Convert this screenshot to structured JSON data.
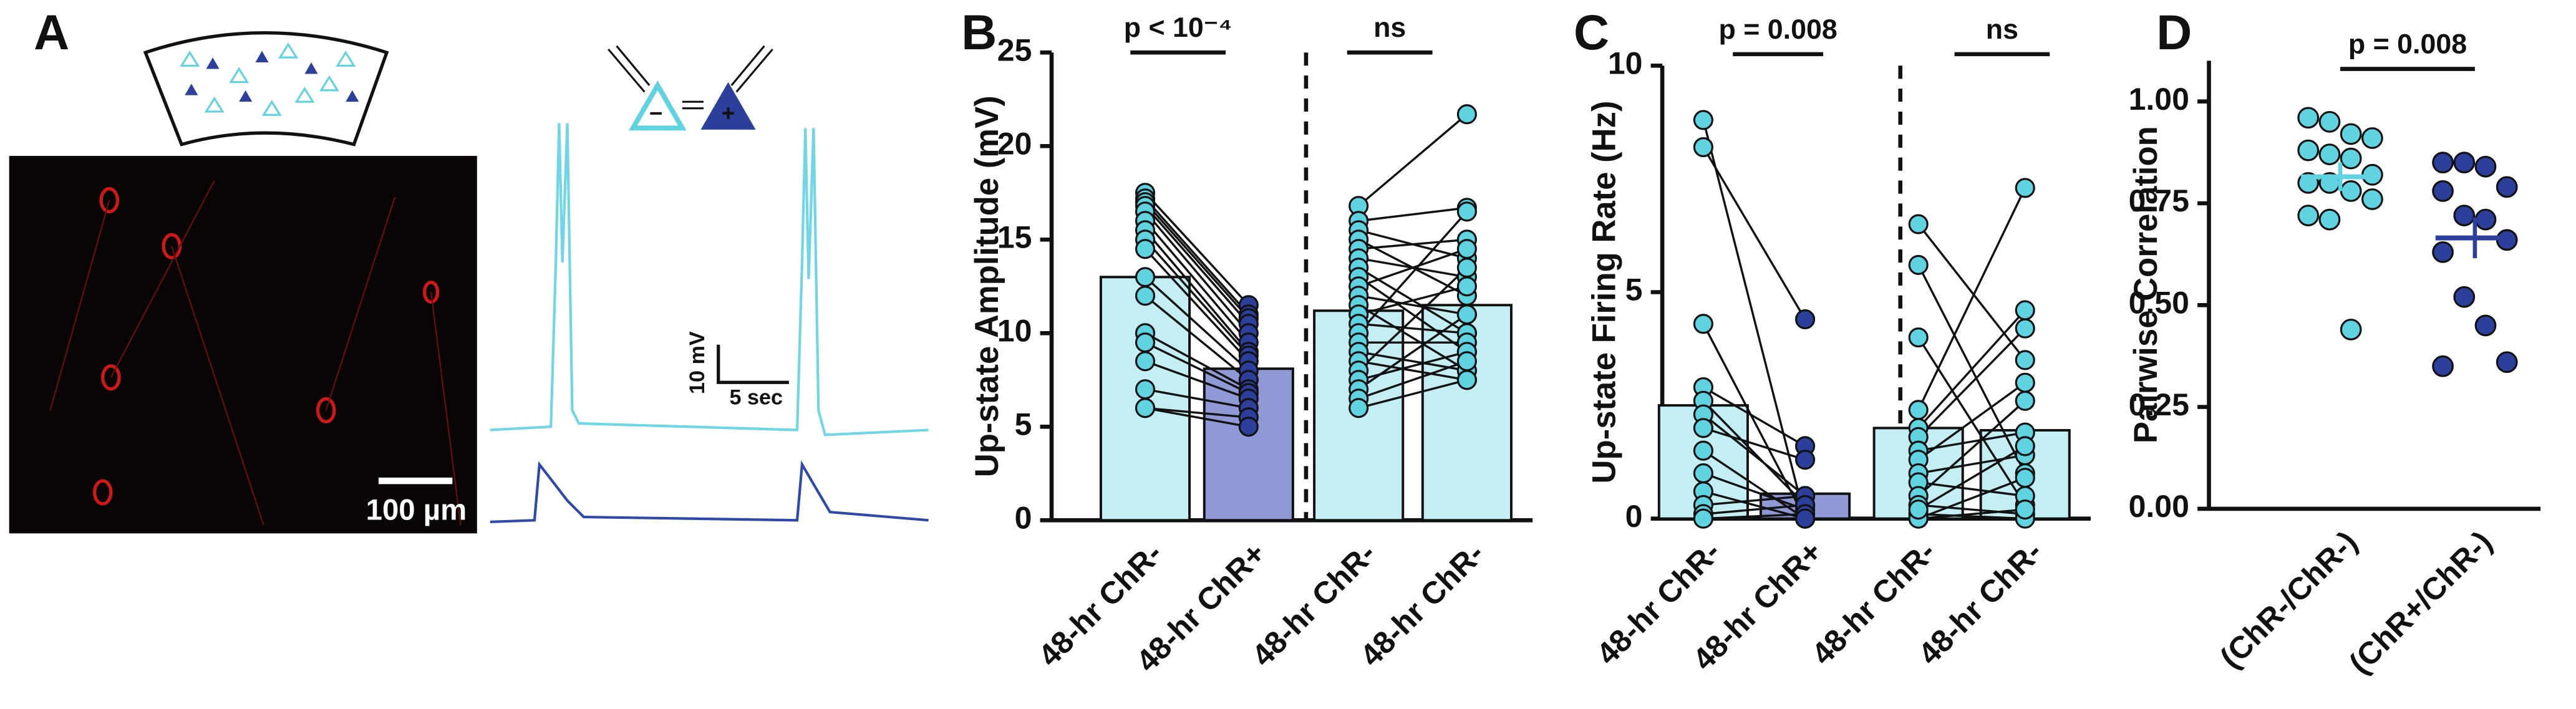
{
  "panel_a": {
    "label": "A",
    "scale_bar": "100 µm",
    "v_scale": "10 mV",
    "t_scale": "5 sec",
    "cell_signs": [
      "−",
      "+"
    ]
  },
  "chart_data": [
    {
      "type": "pairedbar",
      "panel": "B",
      "y_label": "Up-state Amplitude (mV)",
      "categories": [
        "48-hr ChR-",
        "48-hr ChR+",
        "48-hr ChR-",
        "48-hr ChR-"
      ],
      "values": [
        13,
        8.1,
        11.2,
        11.5
      ],
      "bar_colors": [
        "#c3eef4",
        "#8e99d6",
        "#c3eef4",
        "#c3eef4"
      ],
      "point_colors": [
        "#5fd3e0",
        "#2b3f9b",
        "#5fd3e0",
        "#5fd3e0"
      ],
      "points": [
        [
          17.5,
          17.2,
          17,
          16.8,
          16.5,
          16,
          15.5,
          15,
          14.5,
          13,
          12,
          10,
          9.5,
          8.5,
          7,
          6,
          6
        ],
        [
          11.5,
          11,
          10.8,
          10.5,
          10,
          9.5,
          9,
          8.8,
          8.5,
          8,
          7.5,
          7,
          6.8,
          6.5,
          6,
          5.5,
          5
        ],
        [
          16.8,
          16,
          15.5,
          15,
          14.5,
          14,
          13.5,
          13,
          12.5,
          12,
          11.5,
          11,
          10.5,
          10,
          9.5,
          9,
          8.5,
          8,
          7.5,
          7,
          6.5,
          6
        ],
        [
          21.7,
          16.7,
          14,
          12,
          15,
          13,
          10,
          9,
          14.5,
          11,
          8,
          12.5,
          10,
          16.5,
          9.5,
          8,
          7.5,
          13.5,
          9,
          11,
          8.5,
          7.5
        ]
      ],
      "pairs": [
        [
          0,
          1
        ],
        [
          2,
          3
        ]
      ],
      "annotations": [
        {
          "text": "p < 10⁻⁴",
          "groups": [
            0,
            1
          ]
        },
        {
          "text": "ns",
          "groups": [
            2,
            3
          ]
        }
      ],
      "ylim": [
        0,
        25
      ],
      "yticks": [
        0,
        5,
        10,
        15,
        20,
        25
      ]
    },
    {
      "type": "pairedbar",
      "panel": "C",
      "y_label": "Up-state Firing Rate (Hz)",
      "categories": [
        "48-hr ChR-",
        "48-hr ChR+",
        "48-hr ChR-",
        "48-hr ChR-"
      ],
      "values": [
        2.5,
        0.55,
        2.0,
        1.95
      ],
      "bar_colors": [
        "#c3eef4",
        "#8e99d6",
        "#c3eef4",
        "#c3eef4"
      ],
      "point_colors": [
        "#5fd3e0",
        "#2b3f9b",
        "#5fd3e0",
        "#5fd3e0"
      ],
      "points": [
        [
          8.8,
          8.2,
          4.3,
          2.9,
          2.6,
          2.3,
          2.0,
          1.5,
          1.0,
          0.6,
          0.3,
          0.1,
          0,
          0
        ],
        [
          0,
          4.4,
          0,
          1.6,
          0.3,
          0.5,
          1.3,
          0,
          0.2,
          0,
          0.5,
          0.3,
          0.1,
          0
        ],
        [
          6.5,
          5.6,
          4.0,
          2.4,
          2.0,
          1.8,
          1.5,
          1.3,
          1.0,
          0.8,
          0.5,
          0.3,
          0.1,
          0,
          0,
          0.2
        ],
        [
          3.5,
          1.0,
          0.3,
          7.3,
          4.6,
          4.2,
          1.9,
          3.0,
          1.4,
          0.5,
          2.6,
          0.1,
          0,
          0.9,
          0.2,
          1.6
        ]
      ],
      "pairs": [
        [
          0,
          1
        ],
        [
          2,
          3
        ]
      ],
      "annotations": [
        {
          "text": "p = 0.008",
          "groups": [
            0,
            1
          ]
        },
        {
          "text": "ns",
          "groups": [
            2,
            3
          ]
        }
      ],
      "ylim": [
        0,
        10
      ],
      "yticks": [
        0,
        5,
        10
      ]
    },
    {
      "type": "dotplot",
      "panel": "D",
      "y_label": "Pairwise Correlation",
      "categories": [
        "(ChR-/ChR-)",
        "(ChR+/ChR-)"
      ],
      "point_colors": [
        "#5fd3e0",
        "#2b3f9b"
      ],
      "mean_colors": [
        "#5fd3e0",
        "#2b3f9b"
      ],
      "points": [
        [
          0.96,
          0.95,
          0.92,
          0.91,
          0.88,
          0.87,
          0.86,
          0.82,
          0.8,
          0.8,
          0.78,
          0.76,
          0.72,
          0.71,
          0.44
        ],
        [
          0.85,
          0.85,
          0.84,
          0.79,
          0.78,
          0.72,
          0.71,
          0.66,
          0.63,
          0.52,
          0.45,
          0.36,
          0.35
        ]
      ],
      "means": [
        0.815,
        0.665
      ],
      "errors": [
        0.035,
        0.05
      ],
      "annotations": [
        {
          "text": "p = 0.008",
          "groups": [
            0,
            1
          ]
        }
      ],
      "ylim": [
        0,
        1.1
      ],
      "yticks": [
        {
          "value": 0,
          "label": "0.00"
        },
        {
          "value": 0.25,
          "label": "0.25"
        },
        {
          "value": 0.5,
          "label": "0.50"
        },
        {
          "value": 0.75,
          "label": "0.75"
        },
        {
          "value": 1,
          "label": "1.00"
        }
      ]
    }
  ]
}
